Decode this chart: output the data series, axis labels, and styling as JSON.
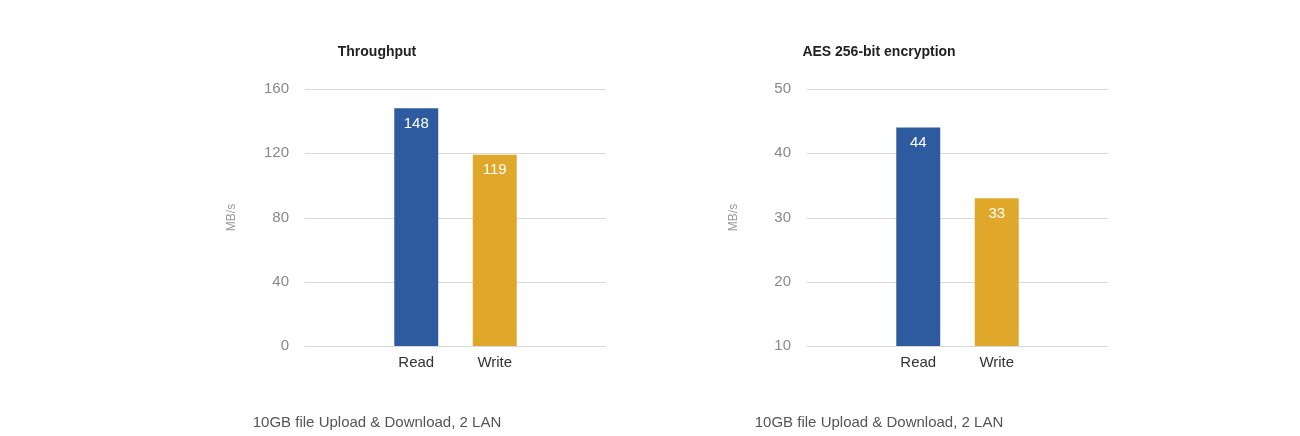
{
  "chart_data": [
    {
      "type": "bar",
      "title": "Throughput",
      "ylabel": "MB/s",
      "categories": [
        "Read",
        "Write"
      ],
      "values": [
        148,
        119
      ],
      "colors": [
        "#2e5b9f",
        "#e0a82a"
      ],
      "ylim": [
        0,
        160
      ],
      "yticks": [
        0,
        40,
        80,
        120,
        160
      ],
      "grid": "y",
      "data_labels": true,
      "annotations": [
        "10GB file Upload & Download, 2 LAN"
      ]
    },
    {
      "type": "bar",
      "title": "AES 256-bit encryption",
      "ylabel": "MB/s",
      "categories": [
        "Read",
        "Write"
      ],
      "values": [
        44,
        33
      ],
      "colors": [
        "#2e5b9f",
        "#e0a82a"
      ],
      "ylim": [
        10,
        50
      ],
      "yticks": [
        10,
        20,
        30,
        40,
        50
      ],
      "grid": "y",
      "data_labels": true,
      "annotations": [
        "10GB file Upload & Download, 2 LAN"
      ]
    }
  ]
}
